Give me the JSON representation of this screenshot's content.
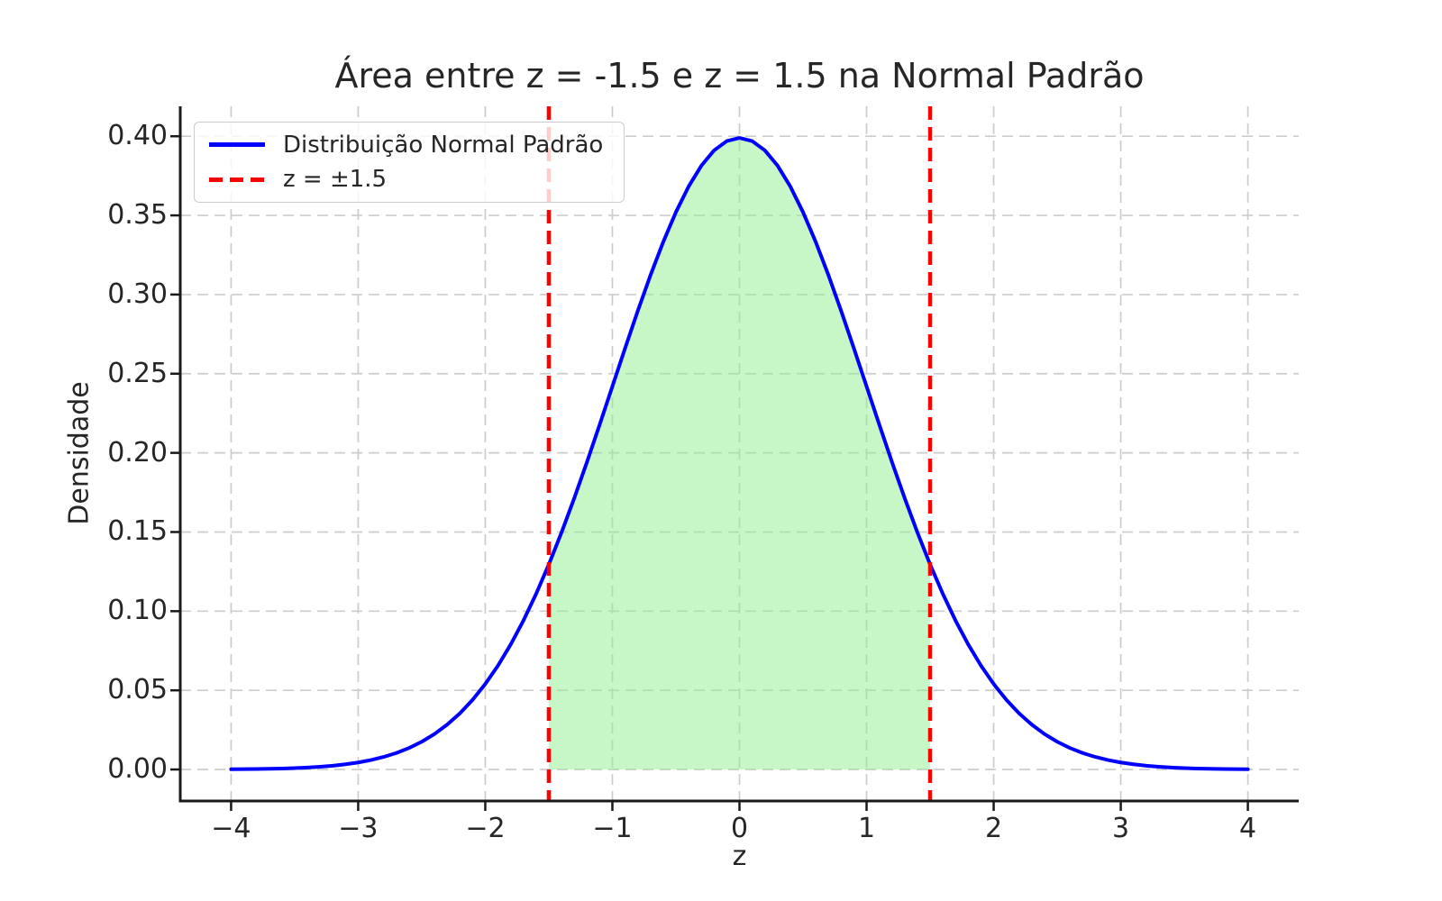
{
  "chart_data": {
    "type": "line",
    "title": "Área entre z = -1.5 e z = 1.5 na Normal Padrão",
    "xlabel": "z",
    "ylabel": "Densidade",
    "xlim": [
      -4.4,
      4.4
    ],
    "ylim": [
      -0.0199,
      0.4189
    ],
    "grid": true,
    "x_ticks": [
      -4,
      -3,
      -2,
      -1,
      0,
      1,
      2,
      3,
      4
    ],
    "x_tick_labels": [
      "−4",
      "−3",
      "−2",
      "−1",
      "0",
      "1",
      "2",
      "3",
      "4"
    ],
    "y_ticks": [
      0.0,
      0.05,
      0.1,
      0.15,
      0.2,
      0.25,
      0.3,
      0.35,
      0.4
    ],
    "y_tick_labels": [
      "0.00",
      "0.05",
      "0.10",
      "0.15",
      "0.20",
      "0.25",
      "0.30",
      "0.35",
      "0.40"
    ],
    "legend": {
      "position": "upper left"
    },
    "colors": {
      "curve": "#0000ff",
      "vline": "#ff0000",
      "fill": "#90ee90",
      "grid": "#cccccc",
      "spine": "#1a1a1a",
      "text": "#262626"
    },
    "series": [
      {
        "name": "Distribuição Normal Padrão",
        "color": "#0000ff",
        "style": "solid",
        "x": [
          -4.0,
          -3.9,
          -3.8,
          -3.7,
          -3.6,
          -3.5,
          -3.4,
          -3.3,
          -3.2,
          -3.1,
          -3.0,
          -2.9,
          -2.8,
          -2.7,
          -2.6,
          -2.5,
          -2.4,
          -2.3,
          -2.2,
          -2.1,
          -2.0,
          -1.9,
          -1.8,
          -1.7,
          -1.6,
          -1.5,
          -1.4,
          -1.3,
          -1.2,
          -1.1,
          -1.0,
          -0.9,
          -0.8,
          -0.7,
          -0.6,
          -0.5,
          -0.4,
          -0.3,
          -0.2,
          -0.1,
          0.0,
          0.1,
          0.2,
          0.3,
          0.4,
          0.5,
          0.6,
          0.7,
          0.8,
          0.9,
          1.0,
          1.1,
          1.2,
          1.3,
          1.4,
          1.5,
          1.6,
          1.7,
          1.8,
          1.9,
          2.0,
          2.1,
          2.2,
          2.3,
          2.4,
          2.5,
          2.6,
          2.7,
          2.8,
          2.9,
          3.0,
          3.1,
          3.2,
          3.3,
          3.4,
          3.5,
          3.6,
          3.7,
          3.8,
          3.9,
          4.0
        ],
        "y": [
          0.00013,
          0.0002,
          0.00029,
          0.00042,
          0.00061,
          0.00087,
          0.00123,
          0.00172,
          0.00238,
          0.00327,
          0.00443,
          0.00595,
          0.00792,
          0.01042,
          0.01358,
          0.01753,
          0.02239,
          0.02833,
          0.03547,
          0.04398,
          0.05399,
          0.06562,
          0.07895,
          0.09405,
          0.11092,
          0.12952,
          0.14973,
          0.17137,
          0.19419,
          0.21785,
          0.24197,
          0.26609,
          0.28969,
          0.31225,
          0.33322,
          0.35207,
          0.36827,
          0.38139,
          0.39104,
          0.39695,
          0.39894,
          0.39695,
          0.39104,
          0.38139,
          0.36827,
          0.35207,
          0.33322,
          0.31225,
          0.28969,
          0.26609,
          0.24197,
          0.21785,
          0.19419,
          0.17137,
          0.14973,
          0.12952,
          0.11092,
          0.09405,
          0.07895,
          0.06562,
          0.05399,
          0.04398,
          0.03547,
          0.02833,
          0.02239,
          0.01753,
          0.01358,
          0.01042,
          0.00792,
          0.00595,
          0.00443,
          0.00327,
          0.00238,
          0.00172,
          0.00123,
          0.00087,
          0.00061,
          0.00042,
          0.00029,
          0.0002,
          0.00013
        ]
      }
    ],
    "vlines": {
      "label": "z = ±1.5",
      "x": [
        -1.5,
        1.5
      ],
      "color": "#ff0000",
      "style": "dashed"
    },
    "fill": {
      "x_from": -1.5,
      "x_to": 1.5,
      "baseline": 0,
      "color": "#90ee90",
      "alpha": 0.5
    }
  }
}
